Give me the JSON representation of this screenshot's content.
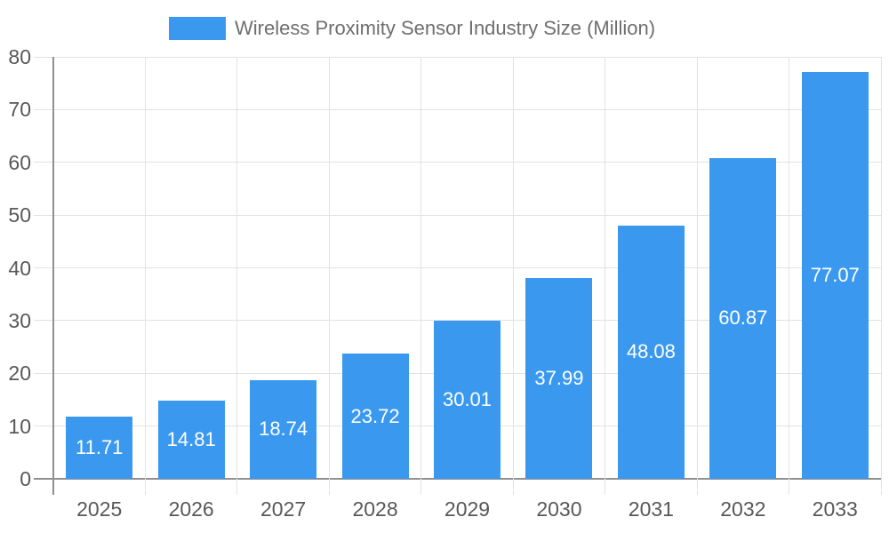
{
  "chart_data": {
    "type": "bar",
    "title": "Wireless Proximity Sensor Industry Size (Million)",
    "categories": [
      "2025",
      "2026",
      "2027",
      "2028",
      "2029",
      "2030",
      "2031",
      "2032",
      "2033"
    ],
    "values": [
      11.71,
      14.81,
      18.74,
      23.72,
      30.01,
      37.99,
      48.08,
      60.87,
      77.07
    ],
    "value_labels": [
      "11.71",
      "14.81",
      "18.74",
      "23.72",
      "30.01",
      "37.99",
      "48.08",
      "60.87",
      "77.07"
    ],
    "xlabel": "",
    "ylabel": "",
    "ylim": [
      0,
      80
    ],
    "yticks": [
      0,
      10,
      20,
      30,
      40,
      50,
      60,
      70,
      80
    ],
    "grid": true,
    "legend_position": "top",
    "colors": {
      "bar": "#3A99EF",
      "bar_value_label": "#ffffff",
      "gridline": "#e2e2e2",
      "axis_line": "#909090",
      "axis_label": "#58585a",
      "legend_text": "#6e6e6e",
      "background": "#ffffff"
    }
  }
}
